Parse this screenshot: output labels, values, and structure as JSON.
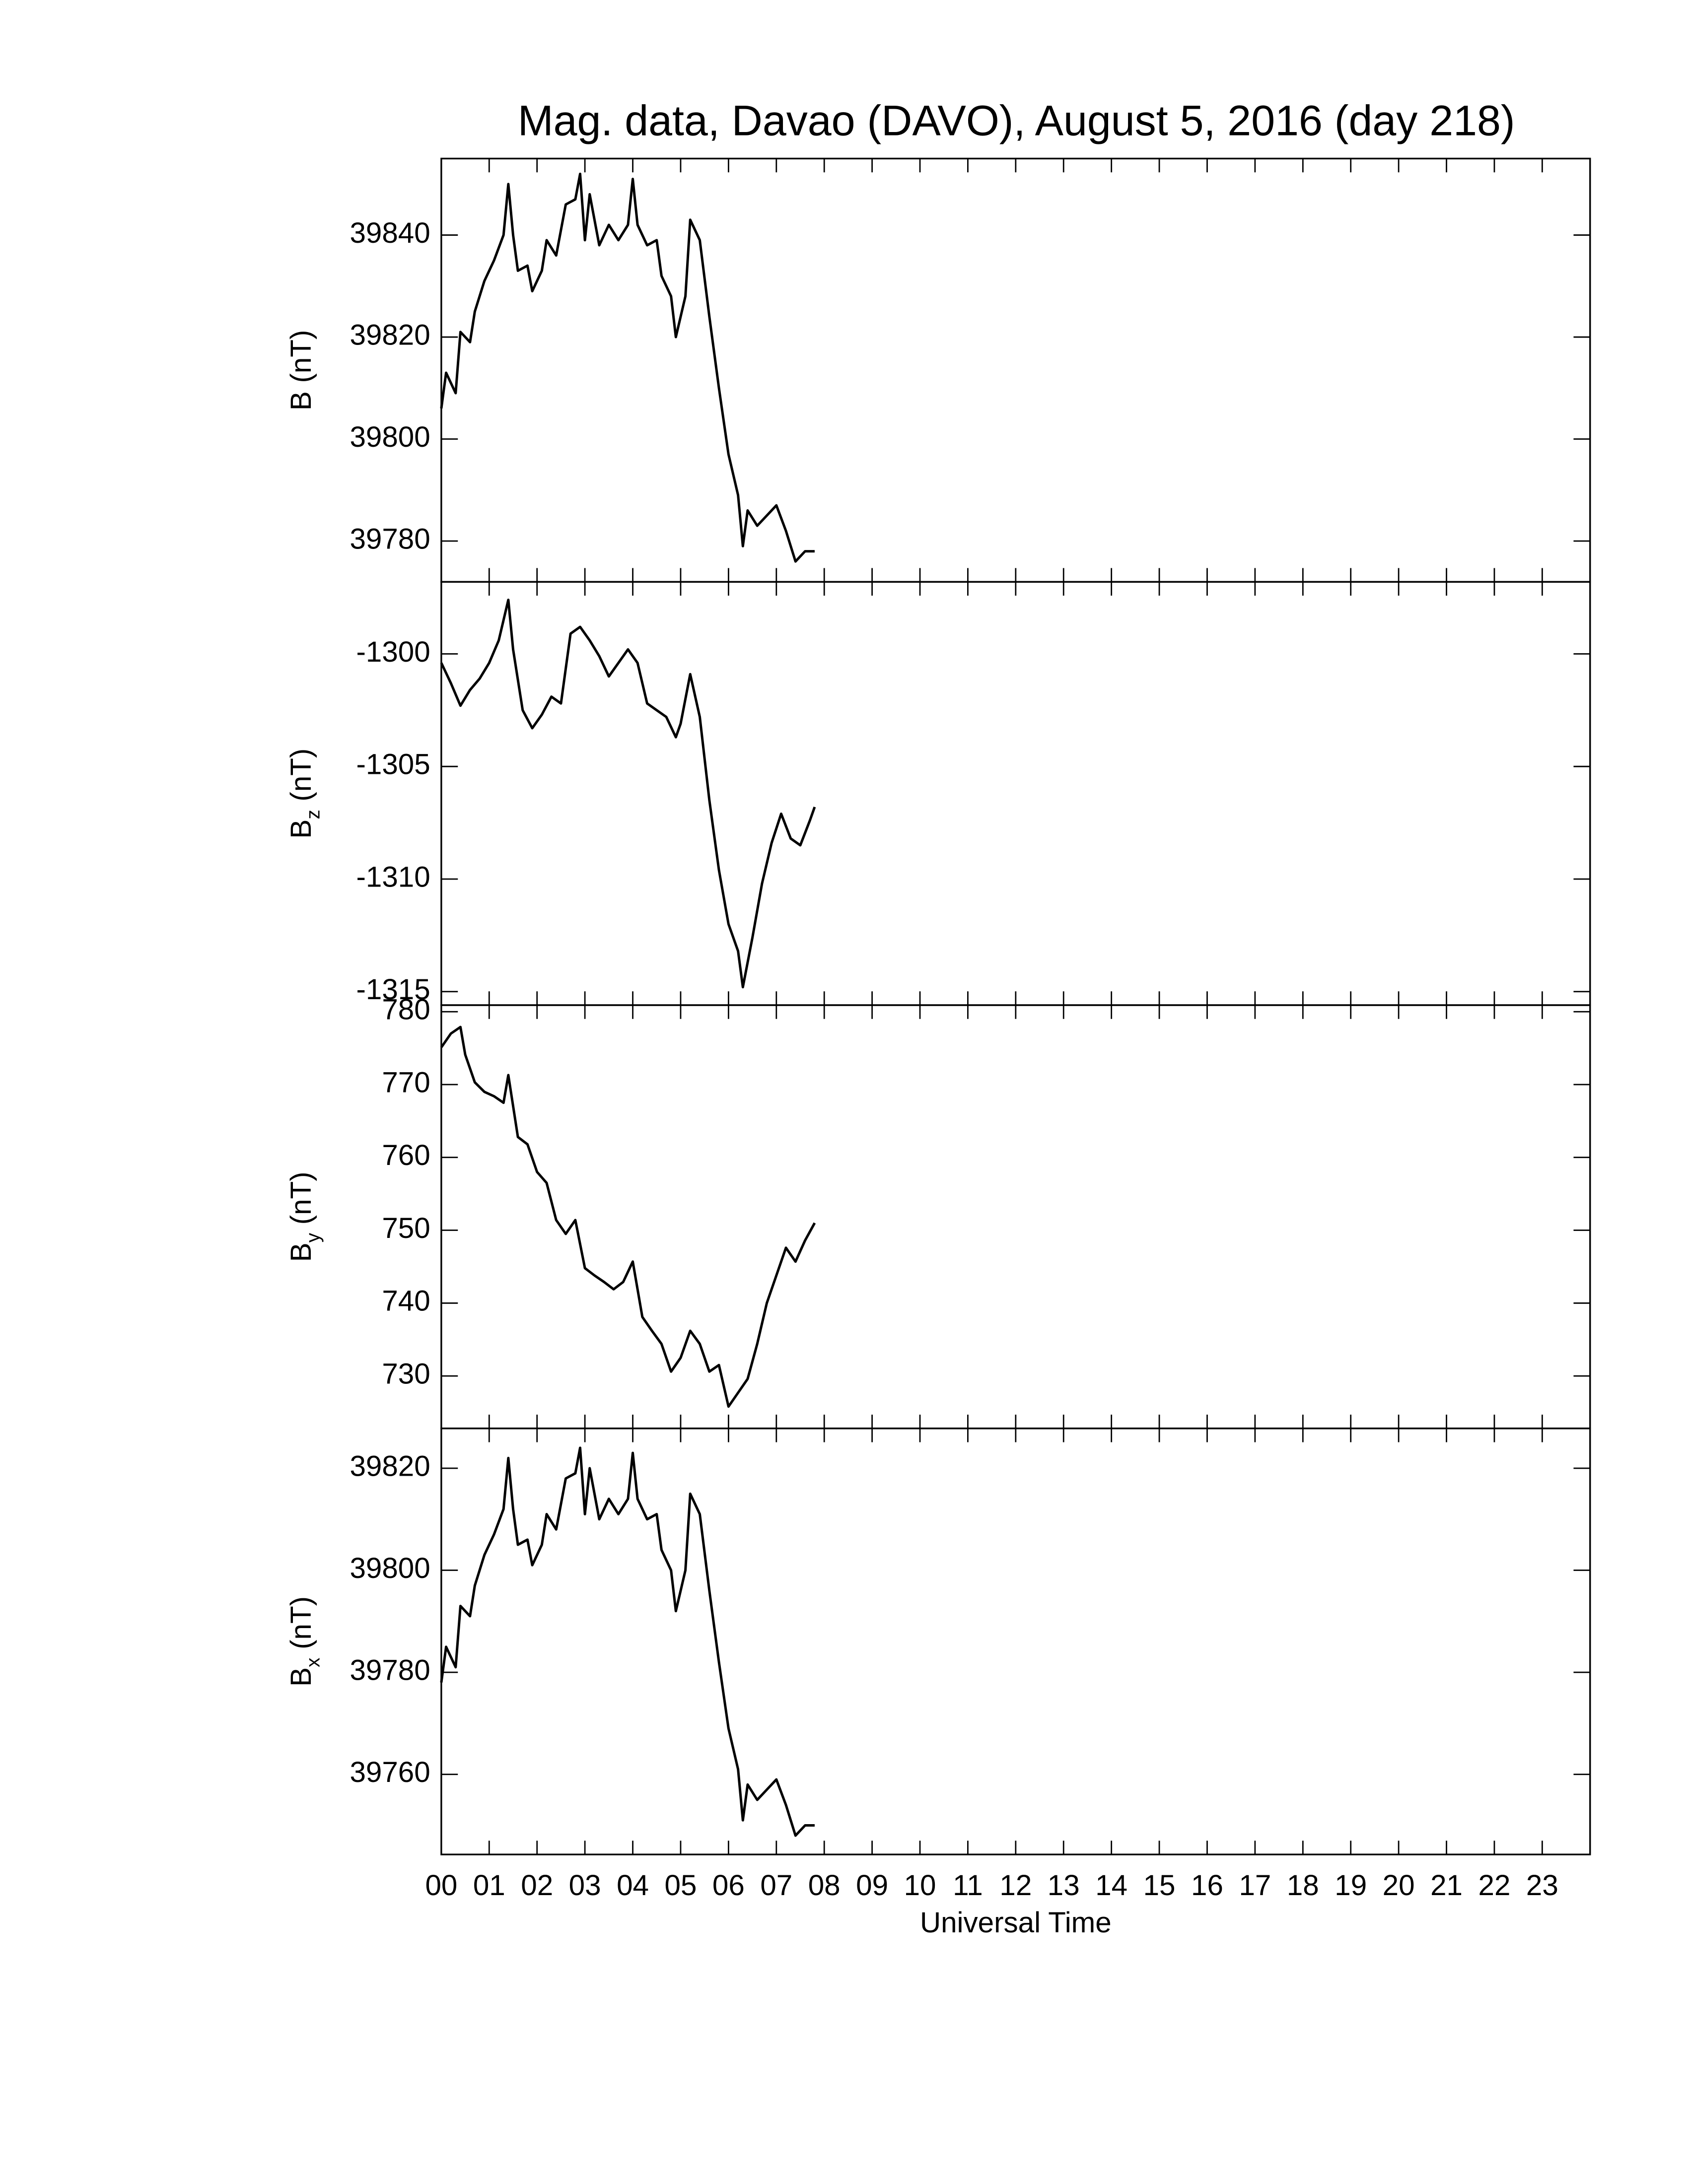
{
  "title": "Mag. data, Davao (DAVO), August 5, 2016 (day 218)",
  "chart_data": [
    {
      "type": "line",
      "ylabel": "B",
      "ylabel_units": "(nT)",
      "color": "#000000",
      "xlim": [
        0,
        24
      ],
      "ylim": [
        39772,
        39855
      ],
      "yticks": [
        39780,
        39800,
        39820,
        39840
      ],
      "x": [
        0,
        0.1,
        0.3,
        0.4,
        0.6,
        0.7,
        0.9,
        1.1,
        1.3,
        1.4,
        1.5,
        1.6,
        1.8,
        1.9,
        2.1,
        2.2,
        2.4,
        2.6,
        2.8,
        2.9,
        3.0,
        3.1,
        3.3,
        3.5,
        3.7,
        3.9,
        4.0,
        4.1,
        4.3,
        4.5,
        4.6,
        4.8,
        4.9,
        5.1,
        5.2,
        5.4,
        5.6,
        5.8,
        6.0,
        6.2,
        6.3,
        6.4,
        6.6,
        6.8,
        7.0,
        7.2,
        7.4,
        7.6,
        7.8
      ],
      "values": [
        39806,
        39813,
        39809,
        39821,
        39819,
        39825,
        39831,
        39835,
        39840,
        39850,
        39840,
        39833,
        39834,
        39829,
        39833,
        39839,
        39836,
        39846,
        39847,
        39852,
        39839,
        39848,
        39838,
        39842,
        39839,
        39842,
        39851,
        39842,
        39838,
        39839,
        39832,
        39828,
        39820,
        39828,
        39843,
        39839,
        39824,
        39810,
        39797,
        39789,
        39779,
        39786,
        39783,
        39785,
        39787,
        39782,
        39776,
        39778,
        39778
      ]
    },
    {
      "type": "line",
      "ylabel": "B",
      "ylabel_subscript": "z",
      "ylabel_units": "(nT)",
      "color": "#000000",
      "xlim": [
        0,
        24
      ],
      "ylim": [
        -1315.6,
        -1296.8
      ],
      "yticks": [
        -1315,
        -1310,
        -1305,
        -1300
      ],
      "x": [
        0,
        0.2,
        0.4,
        0.6,
        0.8,
        1.0,
        1.2,
        1.4,
        1.5,
        1.7,
        1.9,
        2.1,
        2.3,
        2.5,
        2.7,
        2.9,
        3.1,
        3.3,
        3.5,
        3.7,
        3.9,
        4.1,
        4.3,
        4.5,
        4.7,
        4.9,
        5.0,
        5.2,
        5.4,
        5.6,
        5.8,
        6.0,
        6.2,
        6.3,
        6.5,
        6.7,
        6.9,
        7.1,
        7.3,
        7.5,
        7.7,
        7.8
      ],
      "values": [
        -1300.4,
        -1301.3,
        -1302.3,
        -1301.6,
        -1301.1,
        -1300.4,
        -1299.4,
        -1297.6,
        -1299.8,
        -1302.5,
        -1303.3,
        -1302.7,
        -1301.9,
        -1302.2,
        -1299.1,
        -1298.8,
        -1299.4,
        -1300.1,
        -1301.0,
        -1300.4,
        -1299.8,
        -1300.4,
        -1302.2,
        -1302.5,
        -1302.8,
        -1303.7,
        -1303.1,
        -1300.9,
        -1302.8,
        -1306.5,
        -1309.6,
        -1312.0,
        -1313.2,
        -1314.8,
        -1312.6,
        -1310.2,
        -1308.4,
        -1307.1,
        -1308.2,
        -1308.5,
        -1307.4,
        -1306.8
      ]
    },
    {
      "type": "line",
      "ylabel": "B",
      "ylabel_subscript": "y",
      "ylabel_units": "(nT)",
      "color": "#000000",
      "xlim": [
        0,
        24
      ],
      "ylim": [
        722.8,
        780.9
      ],
      "yticks": [
        730,
        740,
        750,
        760,
        770,
        780
      ],
      "x": [
        0,
        0.2,
        0.4,
        0.5,
        0.7,
        0.9,
        1.1,
        1.3,
        1.4,
        1.6,
        1.8,
        2.0,
        2.2,
        2.4,
        2.6,
        2.8,
        3.0,
        3.2,
        3.4,
        3.6,
        3.8,
        4.0,
        4.2,
        4.4,
        4.6,
        4.8,
        5.0,
        5.2,
        5.4,
        5.6,
        5.8,
        6.0,
        6.2,
        6.4,
        6.6,
        6.8,
        7.0,
        7.2,
        7.4,
        7.6,
        7.8
      ],
      "values": [
        775.1,
        777.0,
        777.9,
        774.1,
        770.3,
        769.0,
        768.4,
        767.5,
        771.3,
        762.8,
        761.8,
        758.0,
        756.5,
        751.4,
        749.5,
        751.4,
        744.8,
        743.8,
        742.9,
        741.9,
        742.9,
        745.7,
        738.1,
        736.2,
        734.4,
        730.6,
        732.5,
        736.2,
        734.4,
        730.6,
        731.5,
        725.8,
        727.7,
        729.6,
        734.4,
        740.0,
        743.8,
        747.6,
        745.7,
        748.6,
        751.0
      ]
    },
    {
      "type": "line",
      "ylabel": "B",
      "ylabel_subscript": "x",
      "ylabel_units": "(nT)",
      "xlabel": "Universal Time",
      "color": "#000000",
      "xlim": [
        0,
        24
      ],
      "ylim": [
        39744.3,
        39827.8
      ],
      "yticks": [
        39760,
        39780,
        39800,
        39820
      ],
      "xticks": [
        {
          "value": 0,
          "label": "00"
        },
        {
          "value": 1,
          "label": "01"
        },
        {
          "value": 2,
          "label": "02"
        },
        {
          "value": 3,
          "label": "03"
        },
        {
          "value": 4,
          "label": "04"
        },
        {
          "value": 5,
          "label": "05"
        },
        {
          "value": 6,
          "label": "06"
        },
        {
          "value": 7,
          "label": "07"
        },
        {
          "value": 8,
          "label": "08"
        },
        {
          "value": 9,
          "label": "09"
        },
        {
          "value": 10,
          "label": "10"
        },
        {
          "value": 11,
          "label": "11"
        },
        {
          "value": 12,
          "label": "12"
        },
        {
          "value": 13,
          "label": "13"
        },
        {
          "value": 14,
          "label": "14"
        },
        {
          "value": 15,
          "label": "15"
        },
        {
          "value": 16,
          "label": "16"
        },
        {
          "value": 17,
          "label": "17"
        },
        {
          "value": 18,
          "label": "18"
        },
        {
          "value": 19,
          "label": "19"
        },
        {
          "value": 20,
          "label": "20"
        },
        {
          "value": 21,
          "label": "21"
        },
        {
          "value": 22,
          "label": "22"
        },
        {
          "value": 23,
          "label": "23"
        }
      ],
      "x": [
        0,
        0.1,
        0.3,
        0.4,
        0.6,
        0.7,
        0.9,
        1.1,
        1.3,
        1.4,
        1.5,
        1.6,
        1.8,
        1.9,
        2.1,
        2.2,
        2.4,
        2.6,
        2.8,
        2.9,
        3.0,
        3.1,
        3.3,
        3.5,
        3.7,
        3.9,
        4.0,
        4.1,
        4.3,
        4.5,
        4.6,
        4.8,
        4.9,
        5.1,
        5.2,
        5.4,
        5.6,
        5.8,
        6.0,
        6.2,
        6.3,
        6.4,
        6.6,
        6.8,
        7.0,
        7.2,
        7.4,
        7.6,
        7.8
      ],
      "values": [
        39778,
        39785,
        39781,
        39793,
        39791,
        39797,
        39803,
        39807,
        39812,
        39822,
        39812,
        39805,
        39806,
        39801,
        39805,
        39811,
        39808,
        39818,
        39819,
        39824,
        39811,
        39820,
        39810,
        39814,
        39811,
        39814,
        39823,
        39814,
        39810,
        39811,
        39804,
        39800,
        39792,
        39800,
        39815,
        39811,
        39796,
        39782,
        39769,
        39761,
        39751,
        39758,
        39755,
        39757,
        39759,
        39754,
        39748,
        39750,
        39750
      ]
    }
  ]
}
